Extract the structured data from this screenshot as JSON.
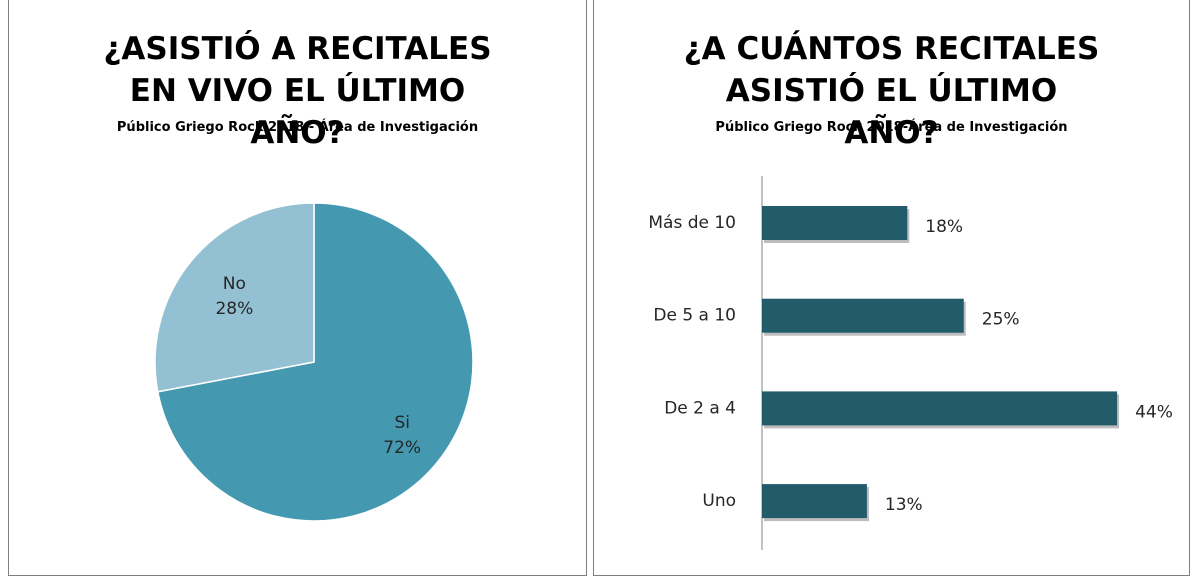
{
  "chart_data": [
    {
      "type": "pie",
      "title": "¿ASISTIÓ A RECITALES EN VIVO EL ÚLTIMO AÑO?",
      "subtitle": "Público Griego Rock 2018 - Área de Investigación",
      "categories": [
        "Si",
        "No"
      ],
      "values": [
        72,
        28
      ],
      "value_labels": [
        "72%",
        "28%"
      ],
      "colors": [
        "#4499b1",
        "#93c1d3"
      ]
    },
    {
      "type": "bar",
      "title": "¿A CUÁNTOS RECITALES ASISTIÓ EL ÚLTIMO AÑO?",
      "subtitle": "Público Griego Rock 2018-Área de Investigación",
      "categories": [
        "Más de 10",
        "De 5 a 10",
        "De 2 a 4",
        "Uno"
      ],
      "values": [
        18,
        25,
        44,
        13
      ],
      "value_labels": [
        "18%",
        "25%",
        "44%",
        "13%"
      ],
      "color": "#225c6b",
      "orientation": "horizontal"
    }
  ]
}
